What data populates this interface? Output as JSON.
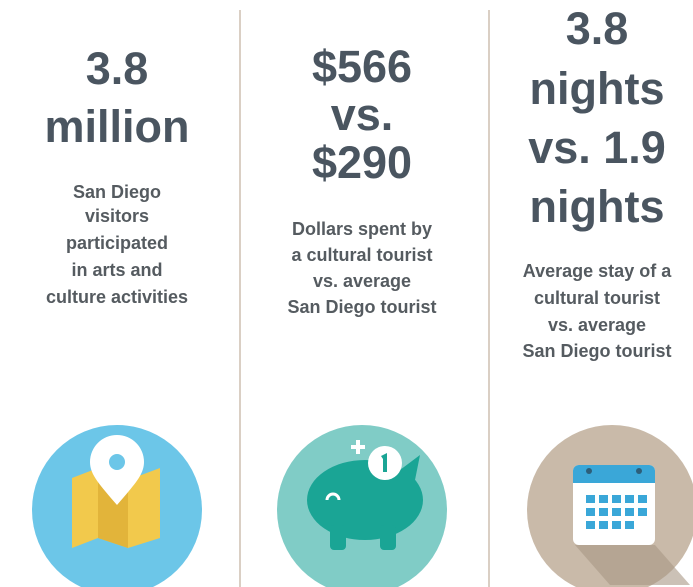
{
  "columns": [
    {
      "headline": [
        "3.8",
        "million"
      ],
      "description": [
        "San Diego",
        "visitors",
        "participated",
        "in arts and",
        "culture activities"
      ]
    },
    {
      "headline": [
        "$566",
        "vs.",
        "$290"
      ],
      "description": [
        "Dollars spent by",
        "a cultural tourist",
        "vs. average",
        "San Diego tourist"
      ]
    },
    {
      "headline": [
        "3.8",
        "nights",
        "vs. 1.9",
        "nights"
      ],
      "description": [
        "Average stay of a",
        "cultural tourist",
        "vs. average",
        "San Diego tourist"
      ]
    }
  ]
}
